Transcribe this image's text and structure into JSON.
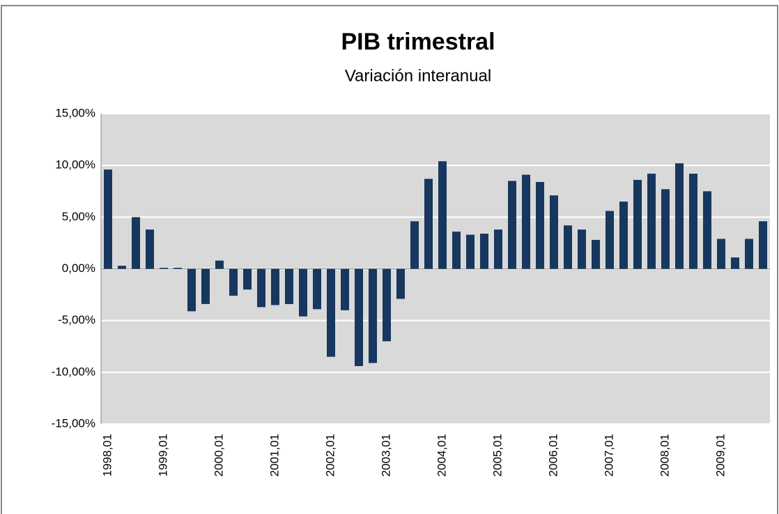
{
  "chart_data": {
    "type": "bar",
    "title": "PIB trimestral",
    "subtitle": "Variación interanual",
    "categories": [
      "1998,01",
      null,
      null,
      null,
      "1999,01",
      null,
      null,
      null,
      "2000,01",
      null,
      null,
      null,
      "2001,01",
      null,
      null,
      null,
      "2002,01",
      null,
      null,
      null,
      "2003,01",
      null,
      null,
      null,
      "2004,01",
      null,
      null,
      null,
      "2005,01",
      null,
      null,
      null,
      "2006,01",
      null,
      null,
      null,
      "2007,01",
      null,
      null,
      null,
      "2008,01",
      null,
      null,
      null,
      "2009,01",
      null,
      null,
      null
    ],
    "values": [
      9.6,
      0.3,
      5.0,
      3.8,
      0.1,
      0.1,
      -4.1,
      -3.4,
      0.8,
      -2.6,
      -2.0,
      -3.7,
      -3.5,
      -3.4,
      -4.6,
      -3.9,
      -8.5,
      -4.0,
      -9.4,
      -9.1,
      -7.0,
      -2.9,
      4.6,
      8.7,
      10.4,
      3.6,
      3.3,
      3.4,
      3.8,
      8.5,
      9.1,
      8.4,
      7.1,
      4.2,
      3.8,
      2.8,
      5.6,
      6.5,
      8.6,
      9.2,
      7.7,
      10.2,
      9.2,
      7.5,
      2.9,
      1.1,
      2.9,
      4.6
    ],
    "color": "#17375e",
    "ylim": [
      -15,
      15
    ],
    "yticks": [
      {
        "value": -15,
        "label": "-15,00%"
      },
      {
        "value": -10,
        "label": "-10,00%"
      },
      {
        "value": -5,
        "label": "-5,00%"
      },
      {
        "value": 0,
        "label": "0,00%"
      },
      {
        "value": 5,
        "label": "5,00%"
      },
      {
        "value": 10,
        "label": "10,00%"
      },
      {
        "value": 15,
        "label": "15,00%"
      }
    ],
    "grid": true
  }
}
